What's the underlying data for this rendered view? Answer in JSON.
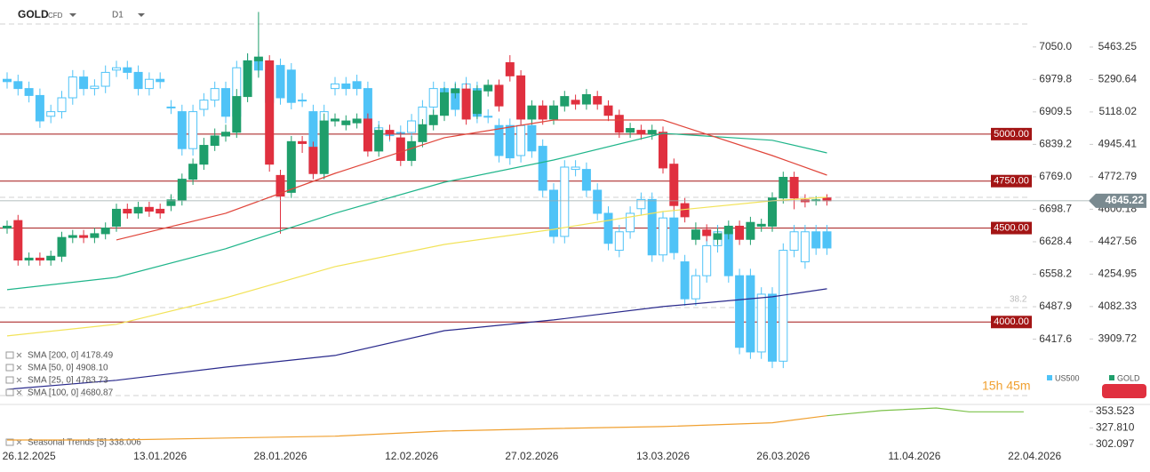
{
  "chart_data": {
    "type": "candlestick",
    "symbol": "GOLD",
    "symbol_type": "CFD",
    "timeframe": "D1",
    "categories": [
      null,
      null,
      "26.12.2025",
      null,
      null,
      null,
      null,
      null,
      null,
      null,
      null,
      null,
      null,
      null,
      "13.01.2026",
      null,
      null,
      null,
      null,
      null,
      null,
      null,
      null,
      null,
      null,
      "28.01.2026",
      null,
      null,
      null,
      null,
      null,
      null,
      null,
      null,
      null,
      null,
      null,
      "12.02.2026",
      null,
      null,
      null,
      null,
      null,
      null,
      null,
      null,
      null,
      null,
      "27.02.2026",
      null,
      null,
      null,
      null,
      null,
      null,
      null,
      null,
      null,
      null,
      null,
      "13.03.2026",
      null,
      null,
      null,
      null,
      null,
      null,
      null,
      null,
      null,
      null,
      "26.03.2026",
      null,
      null,
      null,
      null,
      null,
      null,
      null,
      null,
      null,
      null,
      null,
      "11.04.2026",
      null,
      null,
      null,
      null,
      null,
      null,
      null,
      null,
      null,
      null,
      "22.04.2026"
    ],
    "ylim": [
      3585,
      5690
    ],
    "yticks": [
      5463.25,
      5290.64,
      5118.02,
      4945.41,
      4772.79,
      4600.18,
      4427.56,
      4254.95,
      4082.33,
      3909.72
    ],
    "y2lim": [
      6286,
      7142
    ],
    "y2ticks": [
      {
        "value": 7050,
        "label": "7050.0"
      },
      6979.8,
      6909.5,
      6839.2,
      {
        "value": 6769,
        "label": "6769.0"
      },
      6698.7,
      6628.4,
      6558.2,
      6487.9,
      6417.6
    ],
    "series": [
      {
        "name": "GOLD",
        "up_color": "#1f9e6b",
        "down_color": "#e0303f",
        "open": [
          4500,
          4540,
          4330,
          4340,
          4330,
          4350,
          4450,
          4460,
          4450,
          4470,
          4510,
          4600,
          4580,
          4610,
          4600,
          4620,
          4650,
          4760,
          4840,
          4940,
          4990,
          5010,
          5200,
          5390,
          5390,
          4780,
          4690,
          4960,
          4930,
          4790,
          5070,
          5050,
          5060,
          5080,
          4910,
          5020,
          4980,
          4860,
          4960,
          5050,
          5100,
          5220,
          5240,
          5110,
          5230,
          5260,
          5380,
          5310,
          5080,
          5150,
          5080,
          5150,
          5180,
          5160,
          5200,
          5150,
          5100,
          5010,
          5020,
          5000,
          5010,
          4840,
          4630,
          4440,
          4490,
          4440,
          4470,
          4510,
          4440,
          4510,
          4510,
          4660,
          4770,
          4650,
          4650,
          4660
        ],
        "high": [
          4540,
          4570,
          4370,
          4370,
          4380,
          4480,
          4490,
          4490,
          4500,
          4530,
          4630,
          4630,
          4640,
          4640,
          4630,
          4680,
          4790,
          4870,
          4980,
          5030,
          5050,
          5240,
          5430,
          5650,
          5420,
          4810,
          4990,
          4990,
          4960,
          5110,
          5110,
          5100,
          5110,
          5110,
          5050,
          5050,
          5010,
          4990,
          5080,
          5130,
          5250,
          5270,
          5270,
          5260,
          5290,
          5290,
          5420,
          5340,
          5180,
          5180,
          5180,
          5230,
          5210,
          5240,
          5230,
          5180,
          5130,
          5060,
          5050,
          5050,
          5040,
          4870,
          4660,
          4530,
          4520,
          4500,
          4540,
          4540,
          4560,
          4550,
          4690,
          4800,
          4800,
          4680,
          4670,
          4680
        ],
        "low": [
          4470,
          4300,
          4300,
          4300,
          4300,
          4320,
          4420,
          4420,
          4420,
          4440,
          4480,
          4550,
          4550,
          4560,
          4550,
          4590,
          4620,
          4730,
          4810,
          4910,
          4960,
          4980,
          5170,
          5300,
          4800,
          4470,
          4660,
          4900,
          4760,
          4760,
          5040,
          5020,
          5030,
          4880,
          4880,
          4970,
          4830,
          4830,
          4930,
          5020,
          5070,
          5190,
          5050,
          5080,
          5200,
          5120,
          5280,
          5050,
          5050,
          5050,
          5050,
          5120,
          5130,
          5130,
          5130,
          5070,
          4980,
          4980,
          4970,
          4970,
          4790,
          4590,
          4530,
          4410,
          4430,
          4410,
          4440,
          4410,
          4410,
          4480,
          4480,
          4630,
          4600,
          4610,
          4620,
          4620
        ],
        "close": [
          4510,
          4330,
          4340,
          4330,
          4350,
          4450,
          4460,
          4450,
          4470,
          4500,
          4600,
          4580,
          4610,
          4590,
          4580,
          4650,
          4760,
          4840,
          4940,
          4990,
          5010,
          5200,
          5390,
          5410,
          4840,
          4670,
          4960,
          4950,
          4790,
          5070,
          5080,
          5070,
          5080,
          4910,
          5020,
          5000,
          4860,
          4960,
          5050,
          5100,
          5220,
          5240,
          5080,
          5230,
          5260,
          5150,
          5310,
          5080,
          5150,
          5080,
          5150,
          5200,
          5160,
          5210,
          5160,
          5100,
          5010,
          5030,
          5000,
          5020,
          4820,
          4620,
          4560,
          4490,
          4460,
          4470,
          4510,
          4440,
          4530,
          4520,
          4660,
          4770,
          4660,
          4640,
          4650,
          4645.22
        ]
      },
      {
        "name": "US500",
        "axis": "y2",
        "color": "#4fc3f7",
        "open": [
          6980,
          6975,
          6960,
          6945,
          6900,
          6910,
          6940,
          6985,
          6960,
          6965,
          7000,
          7005,
          6995,
          6960,
          6980,
          6920,
          6910,
          6830,
          6915,
          6935,
          6960,
          6900,
          7010,
          7025,
          7000,
          7010,
          7000,
          6935,
          6910,
          6780,
          6960,
          6970,
          6975,
          6960,
          6865,
          6860,
          6865,
          6865,
          6880,
          6920,
          6960,
          6960,
          6920,
          6960,
          6900,
          6880,
          6880,
          6815,
          6880,
          6835,
          6740,
          6640,
          6785,
          6785,
          6740,
          6690,
          6610,
          6650,
          6700,
          6720,
          6600,
          6680,
          6585,
          6505,
          6555,
          6620,
          6650,
          6555,
          6555,
          6390,
          6515,
          6370,
          6610,
          6585,
          6650,
          6650
        ],
        "high": [
          6995,
          6990,
          6975,
          6960,
          6925,
          6955,
          7000,
          7000,
          6980,
          7010,
          7020,
          7020,
          7010,
          6995,
          6995,
          6935,
          6925,
          6925,
          6950,
          6975,
          6975,
          7020,
          7035,
          7040,
          7015,
          7025,
          7015,
          6950,
          6925,
          6925,
          6985,
          6985,
          6990,
          6975,
          6890,
          6875,
          6880,
          6905,
          6935,
          6975,
          6975,
          6975,
          6985,
          6975,
          6915,
          6895,
          6895,
          6895,
          6895,
          6850,
          6755,
          6805,
          6805,
          6800,
          6755,
          6705,
          6665,
          6705,
          6735,
          6735,
          6695,
          6695,
          6600,
          6570,
          6635,
          6665,
          6665,
          6570,
          6570,
          6530,
          6530,
          6625,
          6665,
          6665,
          6665,
          6665
        ],
        "low": [
          6960,
          6945,
          6930,
          6875,
          6885,
          6895,
          6925,
          6945,
          6945,
          6950,
          6985,
          6980,
          6945,
          6945,
          6960,
          6905,
          6815,
          6815,
          6900,
          6920,
          6885,
          6885,
          6995,
          6985,
          6915,
          6925,
          6915,
          6920,
          6765,
          6765,
          6945,
          6945,
          6945,
          6850,
          6850,
          6845,
          6850,
          6850,
          6865,
          6905,
          6905,
          6900,
          6905,
          6885,
          6885,
          6800,
          6795,
          6800,
          6810,
          6725,
          6625,
          6625,
          6770,
          6725,
          6675,
          6610,
          6595,
          6635,
          6685,
          6585,
          6585,
          6590,
          6490,
          6490,
          6540,
          6605,
          6540,
          6385,
          6375,
          6375,
          6355,
          6355,
          6595,
          6570,
          6600,
          6600
        ],
        "close": [
          6975,
          6960,
          6945,
          6890,
          6910,
          6940,
          6985,
          6960,
          6965,
          6995,
          7005,
          6995,
          6960,
          6980,
          6975,
          6920,
          6830,
          6910,
          6935,
          6960,
          6900,
          7005,
          7020,
          7000,
          6930,
          6940,
          6930,
          6935,
          6780,
          6910,
          6970,
          6960,
          6960,
          6865,
          6875,
          6860,
          6865,
          6890,
          6920,
          6960,
          6920,
          6915,
          6970,
          6900,
          6900,
          6815,
          6810,
          6880,
          6825,
          6740,
          6640,
          6790,
          6790,
          6740,
          6690,
          6625,
          6650,
          6690,
          6720,
          6600,
          6680,
          6605,
          6505,
          6555,
          6620,
          6650,
          6555,
          6400,
          6390,
          6515,
          6370,
          6610,
          6650,
          6650,
          6615,
          6615
        ]
      }
    ],
    "sma": [
      {
        "name": "SMA [200, 0] 4178.49",
        "color": "#2a2a8c",
        "x": [
          0,
          10,
          20,
          30,
          40,
          50,
          60,
          70,
          75
        ],
        "values": [
          3642,
          3690,
          3760,
          3822,
          3954,
          4011,
          4082,
          4134,
          4177
        ]
      },
      {
        "name": "SMA [50, 0] 4908.10",
        "color": "#1fb58a",
        "x": [
          0,
          10,
          20,
          30,
          40,
          50,
          60,
          70,
          75
        ],
        "values": [
          4172,
          4238,
          4390,
          4579,
          4744,
          4862,
          5004,
          4967,
          4900
        ]
      },
      {
        "name": "SMA [25, 0] 4783.73",
        "color": "#e0453a",
        "x": [
          10,
          20,
          30,
          40,
          50,
          60,
          70,
          75
        ],
        "values": [
          4437,
          4579,
          4791,
          4981,
          5075,
          5075,
          4886,
          4782
        ]
      },
      {
        "name": "SMA [100, 0] 4680.87",
        "color": "#f2e35a",
        "x": [
          0,
          10,
          20,
          30,
          40,
          50,
          60,
          70,
          75
        ],
        "values": [
          3926,
          3988,
          4129,
          4295,
          4413,
          4493,
          4588,
          4645,
          4664
        ]
      }
    ],
    "levels": [
      {
        "value": 5000,
        "label": "5000.00"
      },
      {
        "value": 4750,
        "label": "4750.00"
      },
      {
        "value": 4500,
        "label": "4500.00"
      },
      {
        "value": 4000,
        "label": "4000.00"
      }
    ],
    "level_color": "#a31515",
    "last_price": 4645.22,
    "fib_label": "38.2",
    "countdown": "15h 45m",
    "seasonal": {
      "title": "Seasonal Trends [5] 338.006",
      "ylim": [
        295.1,
        364.6
      ],
      "yticks": [
        353.523,
        {
          "value": 327.81,
          "label": "327.810"
        },
        302.097
      ],
      "series": [
        {
          "color": "#f0a030",
          "x": [
            0,
            10,
            20,
            30,
            40,
            50,
            60,
            70,
            75
          ],
          "values": [
            309,
            309,
            312,
            315,
            323,
            327,
            330,
            336,
            347
          ]
        },
        {
          "color": "#7cc24a",
          "x": [
            75,
            80,
            85,
            88,
            93
          ],
          "values": [
            347,
            355,
            359,
            353,
            353
          ]
        }
      ]
    }
  }
}
